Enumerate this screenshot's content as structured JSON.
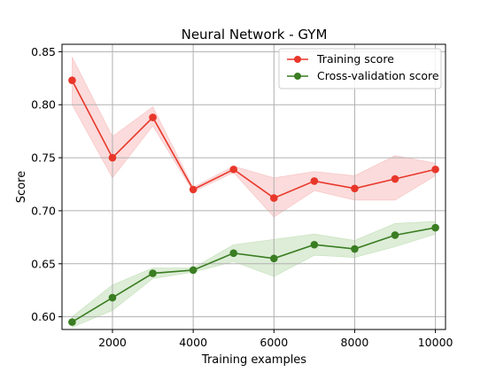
{
  "chart_data": {
    "type": "line",
    "title": "Neural Network - GYM",
    "xlabel": "Training examples",
    "ylabel": "Score",
    "xlim": [
      750,
      10250
    ],
    "ylim": [
      0.588,
      0.857
    ],
    "xticks": [
      2000,
      4000,
      6000,
      8000,
      10000
    ],
    "xtick_labels": [
      "2000",
      "4000",
      "6000",
      "8000",
      "10000"
    ],
    "yticks": [
      0.6,
      0.65,
      0.7,
      0.75,
      0.8,
      0.85
    ],
    "ytick_labels": [
      "0.60",
      "0.65",
      "0.70",
      "0.75",
      "0.80",
      "0.85"
    ],
    "grid": true,
    "legend_position": "top-right",
    "x": [
      1000,
      2000,
      3000,
      4000,
      5000,
      6000,
      7000,
      8000,
      9000,
      10000
    ],
    "series": [
      {
        "name": "Training score",
        "color": "#e8372a",
        "band_color": "#f4a5a5",
        "values": [
          0.823,
          0.75,
          0.788,
          0.72,
          0.739,
          0.712,
          0.728,
          0.721,
          0.73,
          0.739
        ],
        "upper": [
          0.845,
          0.77,
          0.798,
          0.722,
          0.742,
          0.731,
          0.737,
          0.733,
          0.752,
          0.745
        ],
        "lower": [
          0.8,
          0.731,
          0.78,
          0.718,
          0.736,
          0.694,
          0.719,
          0.71,
          0.71,
          0.733
        ]
      },
      {
        "name": "Cross-validation score",
        "color": "#3a7d22",
        "band_color": "#a9d39a",
        "values": [
          0.595,
          0.618,
          0.641,
          0.644,
          0.66,
          0.655,
          0.668,
          0.664,
          0.677,
          0.684
        ],
        "upper": [
          0.6,
          0.63,
          0.646,
          0.646,
          0.668,
          0.673,
          0.678,
          0.672,
          0.688,
          0.69
        ],
        "lower": [
          0.59,
          0.606,
          0.636,
          0.642,
          0.652,
          0.638,
          0.658,
          0.656,
          0.666,
          0.678
        ]
      }
    ]
  }
}
